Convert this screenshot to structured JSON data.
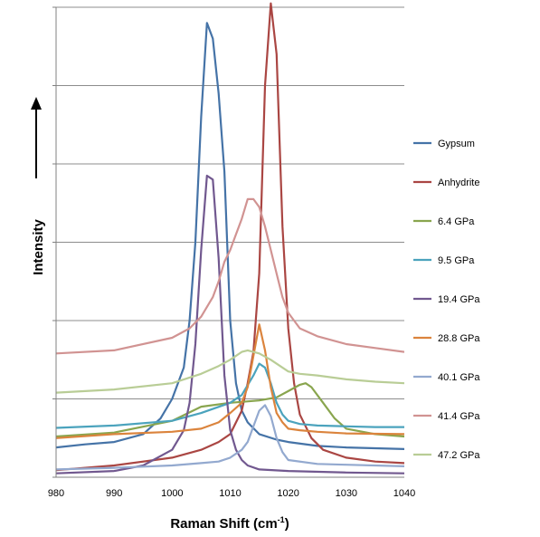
{
  "chart_data": {
    "type": "line",
    "xlabel": "Raman Shift (cm",
    "xlabel_sup": "-1",
    "xlabel_suffix": ")",
    "ylabel": "Intensity",
    "xlim": [
      980,
      1040
    ],
    "xticks": [
      980,
      990,
      1000,
      1010,
      1020,
      1030,
      1040
    ],
    "ylim": [
      0,
      6
    ],
    "yticks": [
      0,
      1,
      2,
      3,
      4,
      5,
      6
    ],
    "y_tick_labels_shown": false,
    "grid": "horizontal",
    "legend_position": "right",
    "series": [
      {
        "name": "Gypsum",
        "color": "#4573A7",
        "x": [
          980,
          985,
          990,
          995,
          998,
          1000,
          1002,
          1003,
          1004,
          1005,
          1006,
          1007,
          1008,
          1009,
          1010,
          1011,
          1012,
          1013,
          1015,
          1018,
          1020,
          1025,
          1030,
          1035,
          1040
        ],
        "y": [
          0.38,
          0.42,
          0.45,
          0.55,
          0.75,
          1.0,
          1.4,
          2.0,
          3.0,
          4.6,
          5.8,
          5.6,
          4.9,
          3.9,
          2.0,
          1.2,
          0.85,
          0.7,
          0.55,
          0.48,
          0.45,
          0.4,
          0.38,
          0.37,
          0.36
        ]
      },
      {
        "name": "Anhydrite",
        "color": "#AA4643",
        "x": [
          980,
          990,
          1000,
          1005,
          1008,
          1010,
          1012,
          1013,
          1014,
          1015,
          1016,
          1017,
          1018,
          1019,
          1020,
          1021,
          1022,
          1024,
          1026,
          1030,
          1035,
          1040
        ],
        "y": [
          0.09,
          0.15,
          0.25,
          0.35,
          0.45,
          0.55,
          0.85,
          1.2,
          1.6,
          2.6,
          5.0,
          6.05,
          5.4,
          3.2,
          1.9,
          1.2,
          0.8,
          0.5,
          0.35,
          0.25,
          0.2,
          0.18
        ]
      },
      {
        "name": "6.4 GPa",
        "color": "#89A54E",
        "x": [
          980,
          990,
          1000,
          1005,
          1010,
          1015,
          1018,
          1020,
          1022,
          1023,
          1024,
          1026,
          1028,
          1030,
          1035,
          1040
        ],
        "y": [
          0.52,
          0.57,
          0.72,
          0.9,
          0.95,
          0.98,
          1.02,
          1.1,
          1.18,
          1.2,
          1.15,
          0.95,
          0.75,
          0.62,
          0.55,
          0.52
        ]
      },
      {
        "name": "9.5 GPa",
        "color": "#4BA3BD",
        "x": [
          980,
          990,
          1000,
          1005,
          1010,
          1012,
          1014,
          1015,
          1016,
          1017,
          1018,
          1019,
          1020,
          1022,
          1025,
          1030,
          1035,
          1040
        ],
        "y": [
          0.63,
          0.66,
          0.72,
          0.82,
          0.95,
          1.05,
          1.3,
          1.45,
          1.4,
          1.2,
          0.95,
          0.8,
          0.72,
          0.68,
          0.66,
          0.65,
          0.64,
          0.64
        ]
      },
      {
        "name": "19.4 GPa",
        "color": "#71588F",
        "x": [
          980,
          990,
          995,
          1000,
          1002,
          1003,
          1004,
          1005,
          1006,
          1007,
          1008,
          1009,
          1010,
          1011,
          1012,
          1013,
          1015,
          1020,
          1030,
          1040
        ],
        "y": [
          0.05,
          0.08,
          0.15,
          0.35,
          0.6,
          0.95,
          1.7,
          2.9,
          3.85,
          3.8,
          2.8,
          1.3,
          0.6,
          0.35,
          0.22,
          0.15,
          0.1,
          0.08,
          0.06,
          0.05
        ]
      },
      {
        "name": "28.8 GPa",
        "color": "#DB843D",
        "x": [
          980,
          990,
          1000,
          1005,
          1008,
          1010,
          1012,
          1013,
          1014,
          1015,
          1016,
          1017,
          1018,
          1019,
          1020,
          1022,
          1025,
          1030,
          1040
        ],
        "y": [
          0.5,
          0.55,
          0.58,
          0.62,
          0.7,
          0.82,
          0.95,
          1.15,
          1.55,
          1.95,
          1.62,
          1.15,
          0.82,
          0.7,
          0.62,
          0.6,
          0.58,
          0.56,
          0.55
        ]
      },
      {
        "name": "40.1 GPa",
        "color": "#93A9CF",
        "x": [
          980,
          990,
          1000,
          1005,
          1008,
          1010,
          1012,
          1013,
          1014,
          1015,
          1016,
          1017,
          1018,
          1019,
          1020,
          1025,
          1030,
          1040
        ],
        "y": [
          0.1,
          0.12,
          0.15,
          0.18,
          0.2,
          0.25,
          0.35,
          0.45,
          0.65,
          0.85,
          0.92,
          0.78,
          0.5,
          0.32,
          0.22,
          0.17,
          0.16,
          0.14
        ]
      },
      {
        "name": "41.4 GPa",
        "color": "#D19392",
        "x": [
          980,
          990,
          1000,
          1003,
          1005,
          1007,
          1008,
          1009,
          1010,
          1011,
          1012,
          1013,
          1014,
          1015,
          1016,
          1017,
          1018,
          1019,
          1020,
          1022,
          1025,
          1030,
          1035,
          1040
        ],
        "y": [
          1.58,
          1.62,
          1.78,
          1.9,
          2.05,
          2.3,
          2.5,
          2.75,
          2.9,
          3.1,
          3.3,
          3.55,
          3.55,
          3.45,
          3.2,
          2.9,
          2.6,
          2.3,
          2.1,
          1.9,
          1.8,
          1.7,
          1.65,
          1.6
        ]
      },
      {
        "name": "47.2 GPa",
        "color": "#B9CD96",
        "x": [
          980,
          990,
          1000,
          1005,
          1008,
          1010,
          1012,
          1013,
          1015,
          1017,
          1019,
          1020,
          1022,
          1025,
          1030,
          1035,
          1040
        ],
        "y": [
          1.08,
          1.12,
          1.2,
          1.32,
          1.42,
          1.5,
          1.6,
          1.62,
          1.58,
          1.5,
          1.4,
          1.35,
          1.32,
          1.3,
          1.25,
          1.22,
          1.2
        ]
      }
    ]
  }
}
